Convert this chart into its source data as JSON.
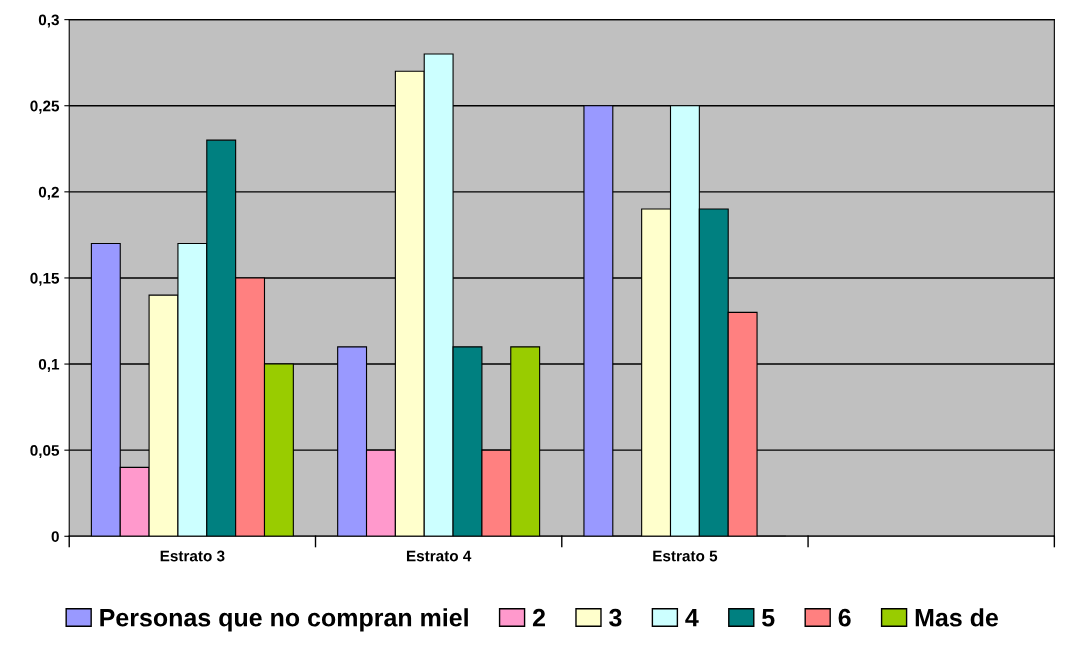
{
  "chart_data": {
    "type": "bar",
    "categories": [
      "Estrato 3",
      "Estrato 4",
      "Estrato 5",
      null
    ],
    "series": [
      {
        "name": "Personas que no compran miel",
        "color": "#9999ff",
        "values": [
          0.17,
          0.11,
          0.25,
          null
        ]
      },
      {
        "name": "2",
        "color": "#ff99cc",
        "values": [
          0.04,
          0.05,
          0,
          null
        ]
      },
      {
        "name": "3",
        "color": "#ffffcc",
        "values": [
          0.14,
          0.27,
          0.19,
          null
        ]
      },
      {
        "name": "4",
        "color": "#ccffff",
        "values": [
          0.17,
          0.28,
          0.25,
          null
        ]
      },
      {
        "name": "5",
        "color": "#008080",
        "values": [
          0.23,
          0.11,
          0.19,
          null
        ]
      },
      {
        "name": "6",
        "color": "#ff8080",
        "values": [
          0.15,
          0.05,
          0.13,
          null
        ]
      },
      {
        "name": "Mas de",
        "color": "#99cc00",
        "values": [
          0.1,
          0.11,
          0,
          null
        ]
      }
    ],
    "ylim": [
      0,
      0.3
    ],
    "yticks": [
      0,
      {
        "value": 0.05,
        "label": "0,05"
      },
      {
        "value": 0.1,
        "label": "0,1"
      },
      {
        "value": 0.15,
        "label": "0,15"
      },
      {
        "value": 0.2,
        "label": "0,2"
      },
      {
        "value": 0.25,
        "label": "0,25"
      },
      {
        "value": 0.3,
        "label": "0,3"
      }
    ],
    "grid": "y",
    "legend": "bottom"
  }
}
